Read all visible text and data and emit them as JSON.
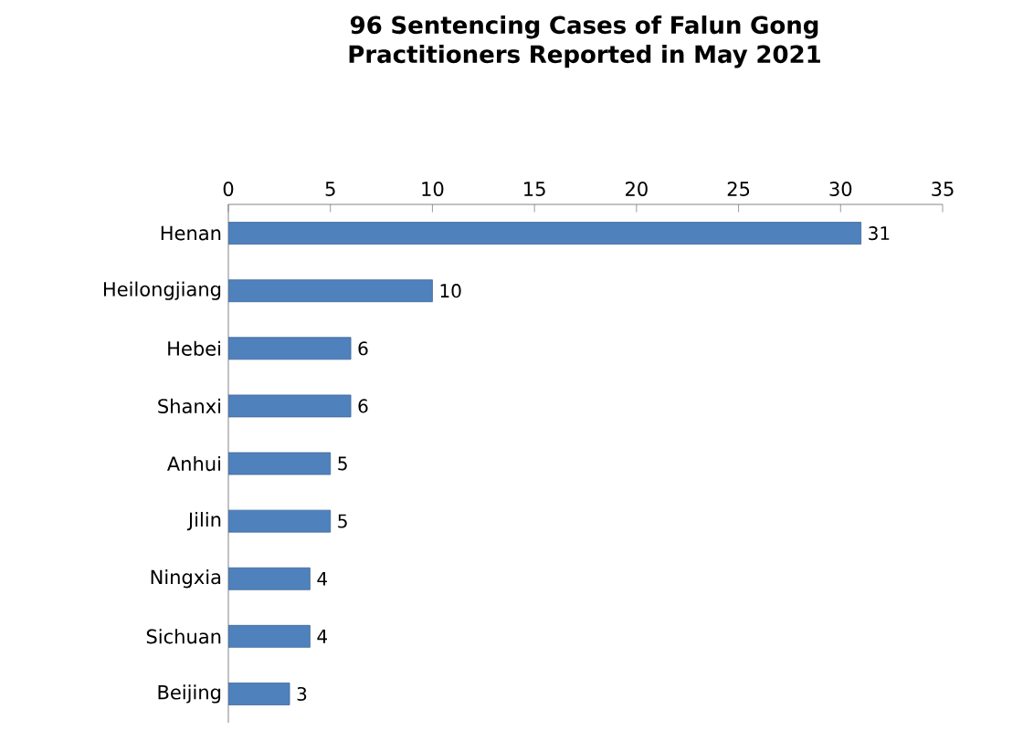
{
  "chart_data": {
    "type": "bar",
    "orientation": "horizontal",
    "title": "96 Sentencing Cases of Falun Gong Practitioners Reported in May 2021",
    "categories": [
      "Henan",
      "Heilongjiang",
      "Hebei",
      "Shanxi",
      "Anhui",
      "Jilin",
      "Ningxia",
      "Sichuan",
      "Beijing"
    ],
    "values": [
      31,
      10,
      6,
      6,
      5,
      5,
      4,
      4,
      3
    ],
    "color": "#4f81bd",
    "xlim": [
      0,
      35
    ],
    "xticks": [
      0,
      5,
      10,
      15,
      20,
      25,
      30,
      35
    ],
    "data_labels": true,
    "grid": false
  }
}
